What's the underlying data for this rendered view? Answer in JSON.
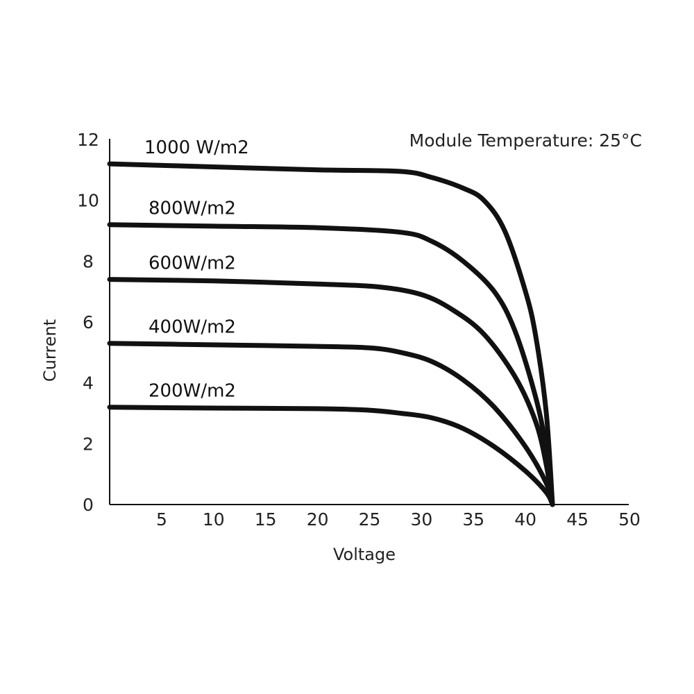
{
  "chart_data": {
    "type": "line",
    "title": "",
    "xlabel": "Voltage",
    "ylabel": "Current",
    "xlim": [
      0,
      50
    ],
    "ylim": [
      0,
      12
    ],
    "x_ticks": [
      5,
      10,
      15,
      20,
      25,
      30,
      35,
      40,
      45,
      50
    ],
    "y_ticks": [
      0,
      2,
      4,
      6,
      8,
      10,
      12
    ],
    "grid": false,
    "annotation": "Module Temperature: 25°C",
    "line_color": "#111111",
    "series": [
      {
        "name": "1000 W/m2",
        "points": [
          [
            0,
            11.2
          ],
          [
            10,
            11.1
          ],
          [
            20,
            11.0
          ],
          [
            28,
            10.95
          ],
          [
            31,
            10.75
          ],
          [
            34,
            10.4
          ],
          [
            36,
            10.0
          ],
          [
            38,
            9.0
          ],
          [
            40,
            7.0
          ],
          [
            41,
            5.5
          ],
          [
            42,
            3.0
          ],
          [
            42.6,
            0
          ]
        ]
      },
      {
        "name": "800W/m2",
        "points": [
          [
            0,
            9.2
          ],
          [
            10,
            9.15
          ],
          [
            20,
            9.1
          ],
          [
            28,
            8.95
          ],
          [
            31,
            8.65
          ],
          [
            34,
            8.0
          ],
          [
            37,
            7.0
          ],
          [
            39,
            5.7
          ],
          [
            41,
            3.5
          ],
          [
            42,
            1.8
          ],
          [
            42.6,
            0
          ]
        ]
      },
      {
        "name": "600W/m2",
        "points": [
          [
            0,
            7.4
          ],
          [
            10,
            7.35
          ],
          [
            20,
            7.25
          ],
          [
            26,
            7.15
          ],
          [
            30,
            6.9
          ],
          [
            33,
            6.4
          ],
          [
            36,
            5.6
          ],
          [
            39,
            4.2
          ],
          [
            41,
            2.7
          ],
          [
            42,
            1.3
          ],
          [
            42.6,
            0
          ]
        ]
      },
      {
        "name": "400W/m2",
        "points": [
          [
            0,
            5.3
          ],
          [
            10,
            5.25
          ],
          [
            20,
            5.2
          ],
          [
            25,
            5.15
          ],
          [
            28,
            5.0
          ],
          [
            31,
            4.7
          ],
          [
            34,
            4.1
          ],
          [
            37,
            3.2
          ],
          [
            40,
            1.9
          ],
          [
            42,
            0.7
          ],
          [
            42.6,
            0
          ]
        ]
      },
      {
        "name": "200W/m2",
        "points": [
          [
            0,
            3.2
          ],
          [
            10,
            3.17
          ],
          [
            20,
            3.15
          ],
          [
            25,
            3.1
          ],
          [
            28,
            3.0
          ],
          [
            31,
            2.85
          ],
          [
            34,
            2.5
          ],
          [
            37,
            1.9
          ],
          [
            40,
            1.1
          ],
          [
            42,
            0.4
          ],
          [
            42.6,
            0
          ]
        ]
      }
    ]
  }
}
